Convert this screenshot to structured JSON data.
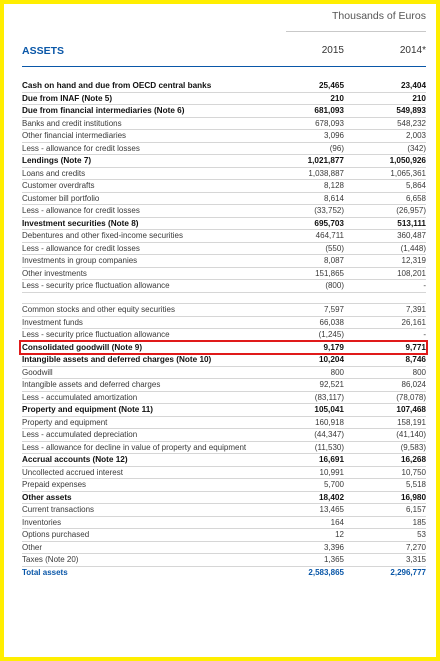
{
  "header": {
    "units": "Thousands of Euros",
    "section": "ASSETS",
    "years": [
      "2015",
      "2014*"
    ]
  },
  "rows": [
    {
      "label": "Cash on hand and due from OECD central banks",
      "v2015": "25,465",
      "v2014": "23,404",
      "style": "bold"
    },
    {
      "label": "Due from INAF (Note 5)",
      "v2015": "210",
      "v2014": "210",
      "style": "bold"
    },
    {
      "label": "Due from financial intermediaries (Note 6)",
      "v2015": "681,093",
      "v2014": "549,893",
      "style": "bold"
    },
    {
      "label": "Banks and credit institutions",
      "v2015": "678,093",
      "v2014": "548,232",
      "style": "normal"
    },
    {
      "label": "Other financial intermediaries",
      "v2015": "3,096",
      "v2014": "2,003",
      "style": "normal"
    },
    {
      "label": "Less - allowance for credit losses",
      "v2015": "(96)",
      "v2014": "(342)",
      "style": "normal"
    },
    {
      "label": "Lendings (Note 7)",
      "v2015": "1,021,877",
      "v2014": "1,050,926",
      "style": "bold"
    },
    {
      "label": "Loans and credits",
      "v2015": "1,038,887",
      "v2014": "1,065,361",
      "style": "normal"
    },
    {
      "label": "Customer overdrafts",
      "v2015": "8,128",
      "v2014": "5,864",
      "style": "normal"
    },
    {
      "label": "Customer bill portfolio",
      "v2015": "8,614",
      "v2014": "6,658",
      "style": "normal"
    },
    {
      "label": "Less - allowance for credit losses",
      "v2015": "(33,752)",
      "v2014": "(26,957)",
      "style": "normal"
    },
    {
      "label": "Investment securities (Note 8)",
      "v2015": "695,703",
      "v2014": "513,111",
      "style": "bold"
    },
    {
      "label": "Debentures and other fixed-income securities",
      "v2015": "464,711",
      "v2014": "360,487",
      "style": "normal"
    },
    {
      "label": "Less - allowance for credit losses",
      "v2015": "(550)",
      "v2014": "(1,448)",
      "style": "normal"
    },
    {
      "label": "Investments in group companies",
      "v2015": "8,087",
      "v2014": "12,319",
      "style": "normal"
    },
    {
      "label": "Other investments",
      "v2015": "151,865",
      "v2014": "108,201",
      "style": "normal"
    },
    {
      "label": "Less - security price fluctuation allowance",
      "v2015": "(800)",
      "v2014": "-",
      "style": "normal"
    },
    {
      "label": "",
      "v2015": "",
      "v2014": "",
      "style": "spacer"
    },
    {
      "label": "Common stocks and other equity securities",
      "v2015": "7,597",
      "v2014": "7,391",
      "style": "normal"
    },
    {
      "label": "Investment funds",
      "v2015": "66,038",
      "v2014": "26,161",
      "style": "normal"
    },
    {
      "label": "Less - security price fluctuation allowance",
      "v2015": "(1,245)",
      "v2014": "-",
      "style": "normal"
    },
    {
      "label": "Consolidated goodwill (Note 9)",
      "v2015": "9,179",
      "v2014": "9,771",
      "style": "bold",
      "highlight": true
    },
    {
      "label": "Intangible assets and deferred charges (Note 10)",
      "v2015": "10,204",
      "v2014": "8,746",
      "style": "bold"
    },
    {
      "label": "Goodwill",
      "v2015": "800",
      "v2014": "800",
      "style": "normal"
    },
    {
      "label": "Intangible assets and deferred charges",
      "v2015": "92,521",
      "v2014": "86,024",
      "style": "normal"
    },
    {
      "label": "Less - accumulated amortization",
      "v2015": "(83,117)",
      "v2014": "(78,078)",
      "style": "normal"
    },
    {
      "label": "Property and equipment (Note 11)",
      "v2015": "105,041",
      "v2014": "107,468",
      "style": "bold"
    },
    {
      "label": "Property and equipment",
      "v2015": "160,918",
      "v2014": "158,191",
      "style": "normal"
    },
    {
      "label": "Less - accumulated depreciation",
      "v2015": "(44,347)",
      "v2014": "(41,140)",
      "style": "normal"
    },
    {
      "label": "Less - allowance for decline in value of property and equipment",
      "v2015": "(11,530)",
      "v2014": "(9,583)",
      "style": "normal"
    },
    {
      "label": "Accrual accounts (Note 12)",
      "v2015": "16,691",
      "v2014": "16,268",
      "style": "bold"
    },
    {
      "label": "Uncollected accrued interest",
      "v2015": "10,991",
      "v2014": "10,750",
      "style": "normal"
    },
    {
      "label": "Prepaid expenses",
      "v2015": "5,700",
      "v2014": "5,518",
      "style": "normal"
    },
    {
      "label": "Other assets",
      "v2015": "18,402",
      "v2014": "16,980",
      "style": "bold"
    },
    {
      "label": "Current transactions",
      "v2015": "13,465",
      "v2014": "6,157",
      "style": "normal"
    },
    {
      "label": "Inventories",
      "v2015": "164",
      "v2014": "185",
      "style": "normal"
    },
    {
      "label": "Options purchased",
      "v2015": "12",
      "v2014": "53",
      "style": "normal"
    },
    {
      "label": "Other",
      "v2015": "3,396",
      "v2014": "7,270",
      "style": "normal"
    },
    {
      "label": "Taxes (Note 20)",
      "v2015": "1,365",
      "v2014": "3,315",
      "style": "normal"
    },
    {
      "label": "Total assets",
      "v2015": "2,583,865",
      "v2014": "2,296,777",
      "style": "total"
    }
  ],
  "colors": {
    "frame": "#ffee00",
    "accent": "#0a57a8",
    "highlight": "#e01a1a"
  }
}
